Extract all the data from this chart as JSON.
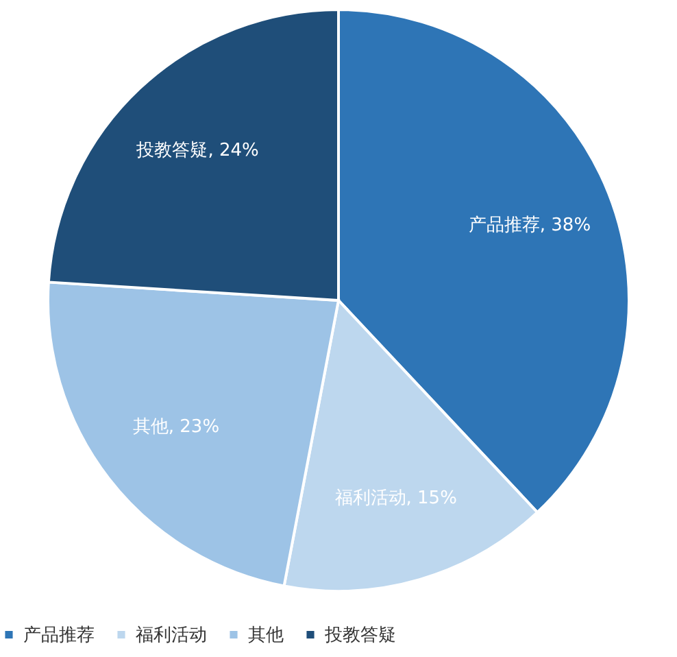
{
  "chart_data": {
    "type": "pie",
    "categories": [
      "产品推荐",
      "福利活动",
      "其他",
      "投教答疑"
    ],
    "values": [
      38,
      15,
      23,
      24
    ],
    "colors": [
      "#2e75b6",
      "#bdd7ee",
      "#9dc3e6",
      "#1f4e79"
    ],
    "value_labels": [
      "产品推荐, 38%",
      "福利活动, 15%",
      "其他, 23%",
      "投教答疑, 24%"
    ],
    "legend": "bottom"
  }
}
